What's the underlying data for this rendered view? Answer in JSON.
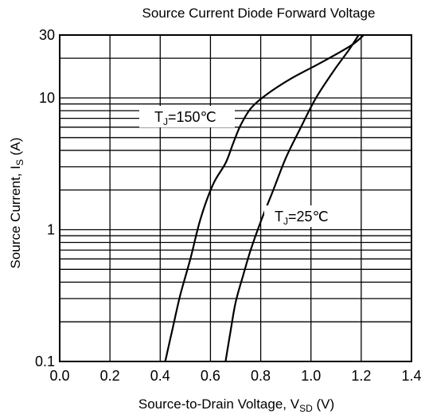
{
  "chart_data": {
    "type": "line",
    "title": "Source Current Diode Forward Voltage",
    "xlabel": {
      "main": "Source-to-Drain Voltage, V",
      "sub": "SD",
      "unit": " (V)"
    },
    "ylabel": {
      "main": "Source Current, I",
      "sub": "S",
      "unit": " (A)"
    },
    "xlim": [
      0.0,
      1.4
    ],
    "ylim": [
      0.1,
      30
    ],
    "yscale": "log",
    "grid": true,
    "xticks": [
      {
        "value": 0.0,
        "label": "0.0"
      },
      {
        "value": 0.2,
        "label": "0.2"
      },
      {
        "value": 0.4,
        "label": "0.4"
      },
      {
        "value": 0.6,
        "label": "0.6"
      },
      {
        "value": 0.8,
        "label": "0.8"
      },
      {
        "value": 1.0,
        "label": "1.0"
      },
      {
        "value": 1.2,
        "label": "1.2"
      },
      {
        "value": 1.4,
        "label": "1.4"
      }
    ],
    "yticks": [
      {
        "value": 0.1,
        "label": "0.1"
      },
      {
        "value": 1,
        "label": "1"
      },
      {
        "value": 10,
        "label": "10"
      },
      {
        "value": 30,
        "label": "30"
      }
    ],
    "series": [
      {
        "name": "TJ=150℃",
        "label_parts": [
          "T",
          "J",
          "=150℃"
        ],
        "color": "#000000",
        "x": [
          0.42,
          0.45,
          0.48,
          0.52,
          0.56,
          0.61,
          0.66,
          0.69,
          0.72,
          0.76,
          0.82,
          0.92,
          1.04,
          1.16,
          1.21
        ],
        "y": [
          0.1,
          0.18,
          0.32,
          0.6,
          1.2,
          2.2,
          3.2,
          4.5,
          6.2,
          8.3,
          10.5,
          14.0,
          18.5,
          25.0,
          30.0
        ]
      },
      {
        "name": "TJ=25℃",
        "label_parts": [
          "T",
          "J",
          "=25℃"
        ],
        "color": "#000000",
        "x": [
          0.66,
          0.68,
          0.7,
          0.73,
          0.76,
          0.8,
          0.85,
          0.9,
          0.96,
          1.02,
          1.09,
          1.15,
          1.19
        ],
        "y": [
          0.1,
          0.17,
          0.28,
          0.45,
          0.7,
          1.15,
          2.0,
          3.5,
          6.0,
          10.0,
          16.0,
          23.0,
          30.0
        ]
      }
    ]
  }
}
